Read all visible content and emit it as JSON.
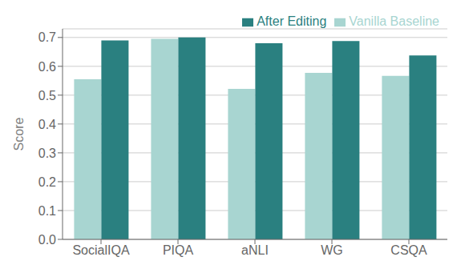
{
  "chart_data": {
    "type": "bar",
    "categories": [
      "SocialIQA",
      "PIQA",
      "aNLI",
      "WG",
      "CSQA"
    ],
    "series": [
      {
        "name": "Vanilla Baseline",
        "color": "#a8d5d1",
        "values": [
          0.555,
          0.695,
          0.522,
          0.577,
          0.567
        ]
      },
      {
        "name": "After Editing",
        "color": "#2a8080",
        "values": [
          0.69,
          0.7,
          0.68,
          0.688,
          0.638
        ]
      }
    ],
    "ylabel": "Score",
    "ylim": [
      0.0,
      0.73
    ],
    "yticks": [
      {
        "value": 0.0,
        "label": "0.0"
      },
      0.1,
      0.2,
      0.3,
      0.4,
      0.5,
      0.6,
      0.7
    ],
    "grid": true,
    "legend": "upper right"
  }
}
